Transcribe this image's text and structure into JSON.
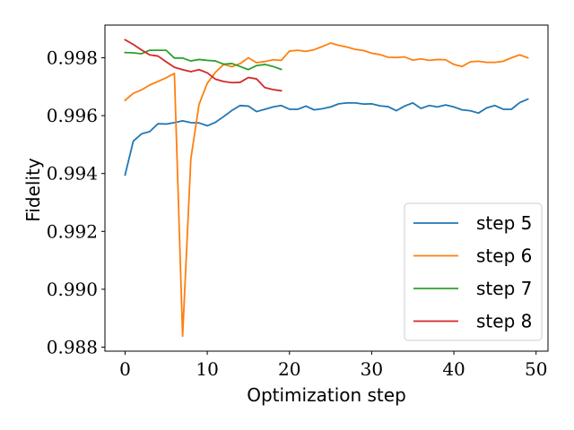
{
  "chart_data": {
    "type": "line",
    "title": "",
    "xlabel": "Optimization step",
    "ylabel": "Fidelity",
    "xlim": [
      -2.45,
      51.45
    ],
    "ylim": [
      0.98786,
      0.99913
    ],
    "xticks": [
      0,
      10,
      20,
      30,
      40,
      50
    ],
    "yticks": [
      0.988,
      0.99,
      0.992,
      0.994,
      0.996,
      0.998
    ],
    "ytick_labels": [
      "0.988",
      "0.990",
      "0.992",
      "0.994",
      "0.996",
      "0.998"
    ],
    "grid": false,
    "legend_position": "lower-right",
    "series": [
      {
        "name": "step 5",
        "color": "#1f77b4",
        "values": [
          0.99395,
          0.99512,
          0.99537,
          0.99545,
          0.99572,
          0.99571,
          0.99576,
          0.99582,
          0.99576,
          0.99575,
          0.99565,
          0.99577,
          0.99597,
          0.99618,
          0.99635,
          0.99633,
          0.99614,
          0.99622,
          0.9963,
          0.99635,
          0.99622,
          0.99622,
          0.99633,
          0.9962,
          0.99624,
          0.9963,
          0.99641,
          0.99644,
          0.99644,
          0.9964,
          0.99641,
          0.99634,
          0.99631,
          0.99617,
          0.99633,
          0.99644,
          0.99625,
          0.99635,
          0.9963,
          0.99637,
          0.9963,
          0.9962,
          0.99617,
          0.99609,
          0.99627,
          0.99635,
          0.99622,
          0.99622,
          0.99645,
          0.99657
        ]
      },
      {
        "name": "step 6",
        "color": "#ff7f0e",
        "values": [
          0.99653,
          0.99677,
          0.99689,
          0.99706,
          0.99718,
          0.99731,
          0.99746,
          0.98838,
          0.9945,
          0.99639,
          0.99712,
          0.9975,
          0.99777,
          0.99769,
          0.9978,
          0.998,
          0.99783,
          0.99787,
          0.99793,
          0.99791,
          0.99823,
          0.99826,
          0.99822,
          0.99828,
          0.99839,
          0.99851,
          0.99843,
          0.99837,
          0.99829,
          0.99825,
          0.99816,
          0.99811,
          0.99802,
          0.99801,
          0.99803,
          0.99792,
          0.99796,
          0.99791,
          0.99794,
          0.99793,
          0.99777,
          0.9977,
          0.99786,
          0.99788,
          0.99784,
          0.99784,
          0.99788,
          0.998,
          0.9981,
          0.998
        ]
      },
      {
        "name": "step 7",
        "color": "#2ca02c",
        "values": [
          0.99818,
          0.99817,
          0.99814,
          0.99826,
          0.99826,
          0.99826,
          0.99799,
          0.99799,
          0.99789,
          0.99794,
          0.99791,
          0.99789,
          0.99778,
          0.9978,
          0.9977,
          0.99759,
          0.99773,
          0.99777,
          0.9977,
          0.9976
        ]
      },
      {
        "name": "step 8",
        "color": "#d62728",
        "values": [
          0.99862,
          0.99846,
          0.99827,
          0.9981,
          0.99806,
          0.99786,
          0.99767,
          0.99759,
          0.99752,
          0.99759,
          0.99748,
          0.99726,
          0.99718,
          0.99714,
          0.99715,
          0.99732,
          0.99727,
          0.99697,
          0.9969,
          0.99686
        ]
      }
    ]
  }
}
